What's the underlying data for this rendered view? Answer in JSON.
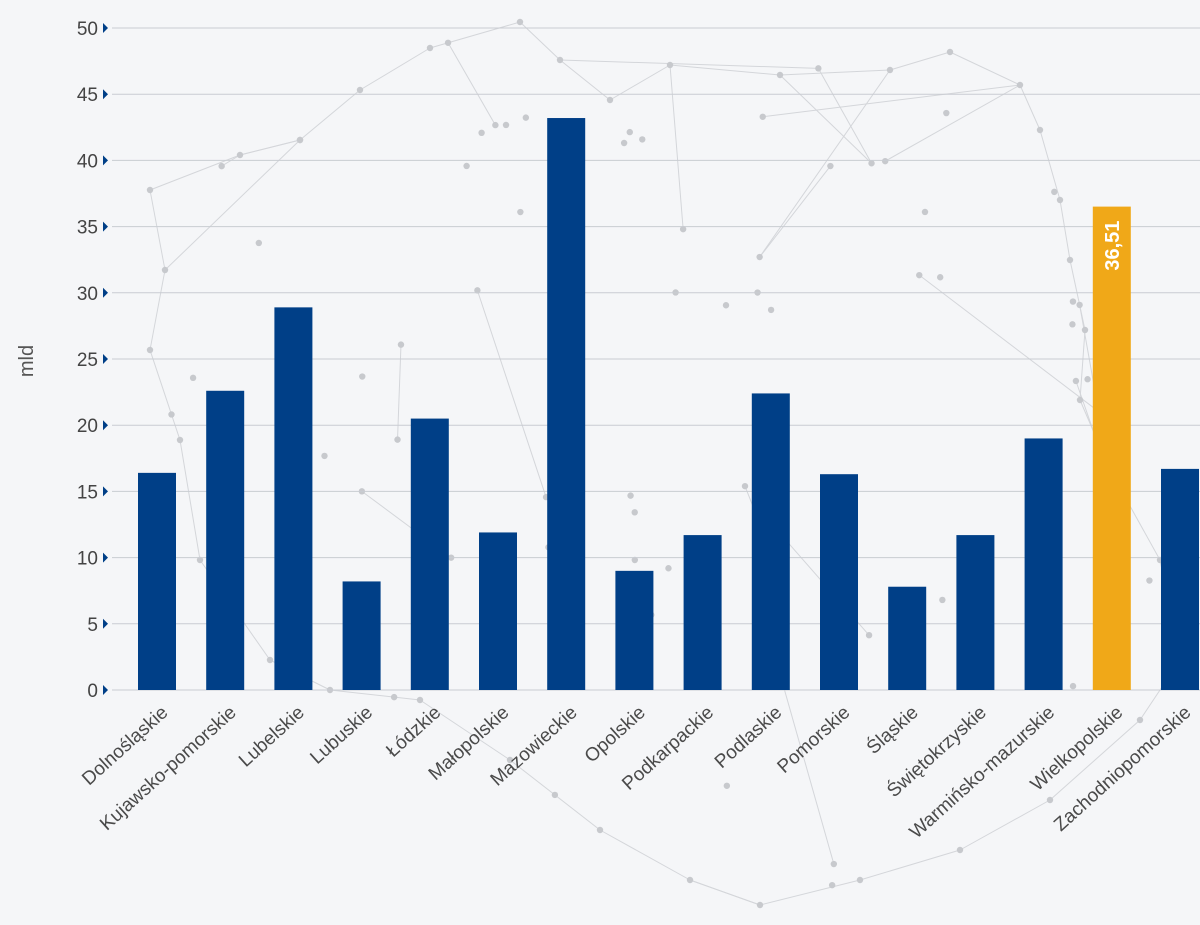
{
  "chart_data": {
    "type": "bar",
    "ylabel": "mld",
    "ylim": [
      0,
      50
    ],
    "yticks": [
      0,
      5,
      10,
      15,
      20,
      25,
      30,
      35,
      40,
      45,
      50
    ],
    "grid": true,
    "categories": [
      "Dolnośląskie",
      "Kujawsko-pomorskie",
      "Lubelskie",
      "Lubuskie",
      "Łódzkie",
      "Małopolskie",
      "Mazowieckie",
      "Opolskie",
      "Podkarpackie",
      "Podlaskie",
      "Pomorskie",
      "Śląskie",
      "Świętokrzyskie",
      "Warmińsko-mazurskie",
      "Wielkopolskie",
      "Zachodniopomorskie"
    ],
    "values": [
      16.4,
      22.6,
      28.9,
      8.2,
      20.5,
      11.9,
      43.2,
      9.0,
      11.7,
      22.4,
      16.3,
      7.8,
      11.7,
      19.0,
      36.51,
      16.7
    ],
    "highlight_index": 14,
    "highlight_label": "36,51",
    "colors": {
      "bar": "#003f87",
      "highlight": "#f0a818",
      "grid": "#c9ccd2"
    }
  }
}
